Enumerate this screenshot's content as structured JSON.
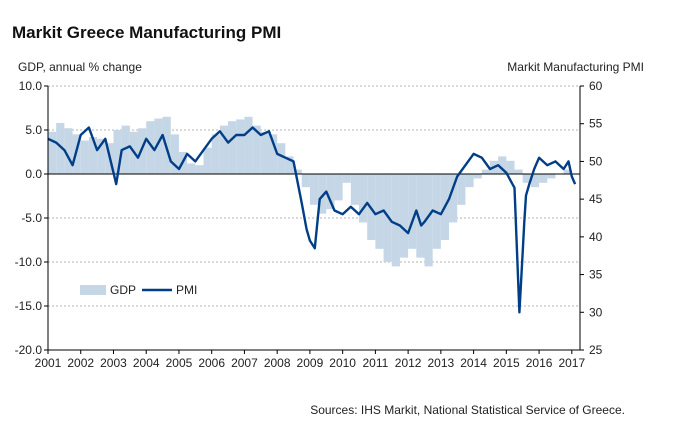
{
  "chart_data": {
    "type": "bar+line",
    "title": "Markit Greece Manufacturing PMI",
    "left_axis_label": "GDP, annual % change",
    "right_axis_label": "Markit Manufacturing PMI",
    "source": "Sources: IHS Markit, National Statistical Service of Greece.",
    "y_left": {
      "min": -20,
      "max": 10,
      "ticks": [
        "10.0",
        "5.0",
        "0.0",
        "-5.0",
        "-10.0",
        "-15.0",
        "-20.0"
      ]
    },
    "y_right": {
      "min": 25,
      "max": 60,
      "ticks": [
        "60",
        "55",
        "50",
        "45",
        "40",
        "35",
        "30",
        "25"
      ]
    },
    "x_axis": {
      "start": 2001,
      "end": 2017.25,
      "labels": [
        "2001",
        "2002",
        "2003",
        "2004",
        "2005",
        "2006",
        "2007",
        "2008",
        "2009",
        "2010",
        "2011",
        "2012",
        "2013",
        "2014",
        "2015",
        "2016",
        "2017"
      ]
    },
    "legend": {
      "position": "bottom-left",
      "items": [
        {
          "name": "GDP",
          "symbol": "bar"
        },
        {
          "name": "PMI",
          "symbol": "line"
        }
      ]
    },
    "series": [
      {
        "name": "GDP",
        "kind": "bar",
        "axis": "left",
        "color": "#c5d6e6",
        "x": [
          2001.0,
          2001.25,
          2001.5,
          2001.75,
          2002.0,
          2002.25,
          2002.5,
          2002.75,
          2003.0,
          2003.25,
          2003.5,
          2003.75,
          2004.0,
          2004.25,
          2004.5,
          2004.75,
          2005.0,
          2005.25,
          2005.5,
          2005.75,
          2006.0,
          2006.25,
          2006.5,
          2006.75,
          2007.0,
          2007.25,
          2007.5,
          2007.75,
          2008.0,
          2008.25,
          2008.5,
          2008.75,
          2009.0,
          2009.25,
          2009.5,
          2009.75,
          2010.0,
          2010.25,
          2010.5,
          2010.75,
          2011.0,
          2011.25,
          2011.5,
          2011.75,
          2012.0,
          2012.25,
          2012.5,
          2012.75,
          2013.0,
          2013.25,
          2013.5,
          2013.75,
          2014.0,
          2014.25,
          2014.5,
          2014.75,
          2015.0,
          2015.25,
          2015.5,
          2015.75,
          2016.0,
          2016.25,
          2016.5,
          2016.75
        ],
        "values": [
          4.8,
          5.8,
          5.2,
          4.5,
          3.8,
          4.2,
          4.0,
          3.5,
          5.0,
          5.5,
          4.8,
          5.2,
          6.0,
          6.3,
          6.5,
          4.5,
          2.5,
          1.2,
          1.0,
          3.0,
          4.5,
          5.5,
          6.0,
          6.2,
          6.5,
          5.5,
          4.8,
          4.5,
          3.5,
          2.0,
          0.5,
          -1.5,
          -3.5,
          -4.5,
          -4.0,
          -3.0,
          -1.0,
          -3.5,
          -5.5,
          -7.5,
          -8.5,
          -10.0,
          -10.5,
          -9.5,
          -8.5,
          -9.5,
          -10.5,
          -8.5,
          -7.5,
          -5.5,
          -3.5,
          -1.5,
          -0.5,
          0.5,
          1.5,
          2.0,
          1.5,
          0.5,
          -1.0,
          -1.5,
          -1.0,
          -0.5,
          0.0,
          0.5
        ]
      },
      {
        "name": "PMI",
        "kind": "line",
        "axis": "right",
        "color": "#003f87",
        "x": [
          2001.0,
          2001.25,
          2001.5,
          2001.75,
          2002.0,
          2002.25,
          2002.5,
          2002.75,
          2003.0,
          2003.083,
          2003.25,
          2003.5,
          2003.75,
          2004.0,
          2004.25,
          2004.5,
          2004.75,
          2005.0,
          2005.25,
          2005.5,
          2005.75,
          2006.0,
          2006.25,
          2006.5,
          2006.75,
          2007.0,
          2007.25,
          2007.5,
          2007.75,
          2008.0,
          2008.25,
          2008.5,
          2008.75,
          2008.9,
          2009.0,
          2009.15,
          2009.3,
          2009.5,
          2009.75,
          2010.0,
          2010.25,
          2010.5,
          2010.75,
          2011.0,
          2011.25,
          2011.5,
          2011.75,
          2012.0,
          2012.25,
          2012.4,
          2012.5,
          2012.75,
          2013.0,
          2013.25,
          2013.5,
          2013.75,
          2014.0,
          2014.25,
          2014.5,
          2014.75,
          2015.0,
          2015.25,
          2015.4,
          2015.5,
          2015.55,
          2015.6,
          2015.7,
          2015.85,
          2016.0,
          2016.25,
          2016.5,
          2016.75,
          2016.9,
          2017.0,
          2017.1
        ],
        "values": [
          53.0,
          52.5,
          51.5,
          49.5,
          53.5,
          54.5,
          51.5,
          53.0,
          48.5,
          47.0,
          51.5,
          52.0,
          50.5,
          53.0,
          51.5,
          53.5,
          50.0,
          49.0,
          51.0,
          50.0,
          51.5,
          53.0,
          54.0,
          52.5,
          53.5,
          53.5,
          54.5,
          53.5,
          54.0,
          51.0,
          50.5,
          50.0,
          44.5,
          41.0,
          39.5,
          38.5,
          45.0,
          46.0,
          43.5,
          43.0,
          44.0,
          43.0,
          44.5,
          43.0,
          43.5,
          42.0,
          41.5,
          40.5,
          43.5,
          41.5,
          42.0,
          43.5,
          43.0,
          45.0,
          48.0,
          49.5,
          51.0,
          50.5,
          49.0,
          49.5,
          48.5,
          46.5,
          30.0,
          38.0,
          42.0,
          45.5,
          47.0,
          49.0,
          50.5,
          49.5,
          50.0,
          49.0,
          50.0,
          48.0,
          47.0
        ]
      }
    ]
  }
}
